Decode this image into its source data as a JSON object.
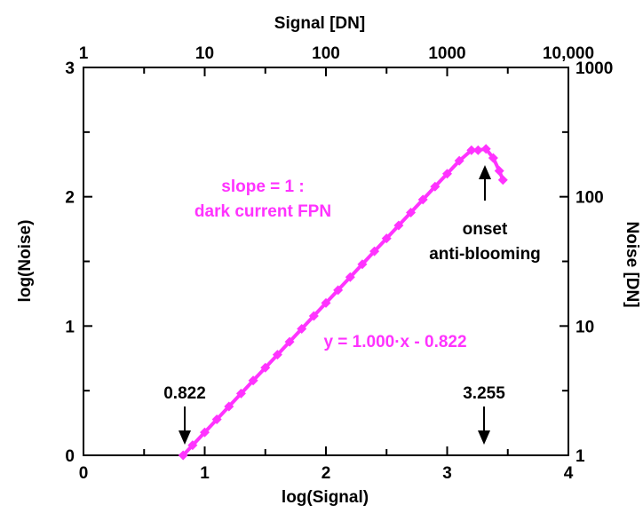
{
  "chart_data": {
    "type": "line",
    "xlabel": "log(Signal)",
    "ylabel": "log(Noise)",
    "x2label": "Signal [DN]",
    "y2label": "Noise [DN]",
    "xlim": [
      0,
      4
    ],
    "ylim": [
      0,
      3
    ],
    "x_ticks": [
      "0",
      "1",
      "2",
      "3",
      "4"
    ],
    "y_ticks": [
      "0",
      "1",
      "2",
      "3"
    ],
    "x2_ticks": [
      "1",
      "10",
      "100",
      "1000",
      "10,000"
    ],
    "y2_ticks": [
      "1",
      "10",
      "100",
      "1000"
    ],
    "grid": false,
    "color": "#ff33ff",
    "series": [
      {
        "x": [
          0.822,
          0.9,
          1.0,
          1.1,
          1.2,
          1.3,
          1.4,
          1.5,
          1.6,
          1.7,
          1.8,
          1.9,
          2.0,
          2.1,
          2.2,
          2.3,
          2.4,
          2.5,
          2.6,
          2.7,
          2.8,
          2.9,
          3.0,
          3.1,
          3.2,
          3.255,
          3.32,
          3.38,
          3.43,
          3.46
        ],
        "y": [
          0.0,
          0.078,
          0.178,
          0.278,
          0.378,
          0.478,
          0.578,
          0.678,
          0.778,
          0.878,
          0.978,
          1.078,
          1.178,
          1.278,
          1.378,
          1.478,
          1.578,
          1.678,
          1.778,
          1.878,
          1.978,
          2.078,
          2.178,
          2.278,
          2.36,
          2.36,
          2.37,
          2.3,
          2.2,
          2.13
        ]
      }
    ],
    "annotations": {
      "slope_line1": "slope = 1 :",
      "slope_line2": "dark current FPN",
      "equation": "y = 1.000·x - 0.822",
      "onset_line1": "onset",
      "onset_line2": "anti-blooming",
      "left_marker": "0.822",
      "right_marker": "3.255"
    }
  }
}
